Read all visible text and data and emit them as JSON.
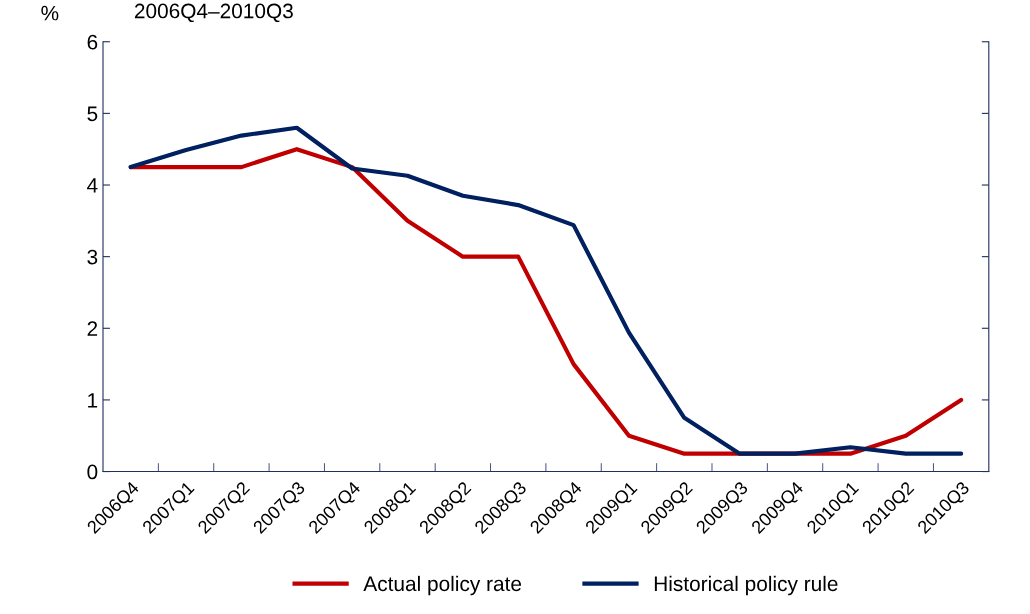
{
  "chart_data": {
    "type": "line",
    "subtitle": "2006Q4–2010Q3",
    "ylabel": "%",
    "categories": [
      "2006Q4",
      "2007Q1",
      "2007Q2",
      "2007Q3",
      "2007Q4",
      "2008Q1",
      "2008Q2",
      "2008Q3",
      "2008Q4",
      "2009Q1",
      "2009Q2",
      "2009Q3",
      "2009Q4",
      "2010Q1",
      "2010Q2",
      "2010Q3"
    ],
    "series": [
      {
        "name": "Actual policy rate",
        "color": "#c00000",
        "values": [
          4.25,
          4.25,
          4.25,
          4.5,
          4.25,
          3.5,
          3.0,
          3.0,
          1.5,
          0.5,
          0.25,
          0.25,
          0.25,
          0.25,
          0.5,
          1.0
        ]
      },
      {
        "name": "Historical policy rule",
        "color": "#002060",
        "values": [
          4.25,
          4.49,
          4.69,
          4.8,
          4.23,
          4.13,
          3.85,
          3.72,
          3.44,
          1.94,
          0.75,
          0.25,
          0.25,
          0.34,
          0.25,
          0.25
        ]
      }
    ],
    "ylim": [
      0,
      6
    ],
    "yticks": [
      0,
      1,
      2,
      3,
      4,
      5,
      6
    ],
    "grid": false,
    "legend": "bottom",
    "marker": "none",
    "line_style": "solid"
  }
}
